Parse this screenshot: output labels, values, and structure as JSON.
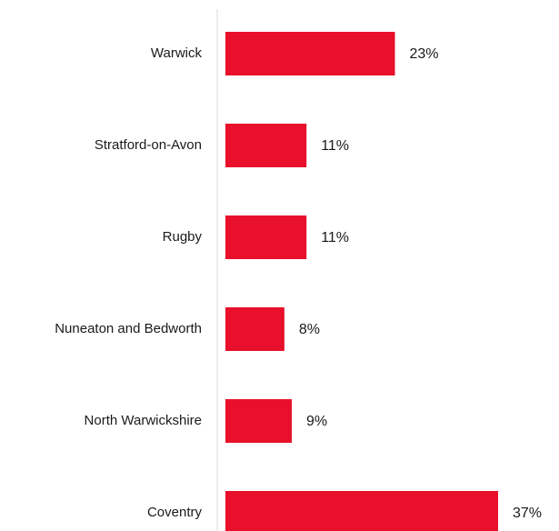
{
  "chart_data": {
    "type": "bar",
    "orientation": "horizontal",
    "categories": [
      "Warwick",
      "Stratford-on-Avon",
      "Rugby",
      "Nuneaton and Bedworth",
      "North Warwickshire",
      "Coventry"
    ],
    "values": [
      23,
      11,
      11,
      8,
      9,
      37
    ],
    "value_labels": [
      "23%",
      "11%",
      "11%",
      "8%",
      "9%",
      "37%"
    ],
    "unit": "%",
    "title": "",
    "xlabel": "",
    "ylabel": "",
    "xlim": [
      0,
      37
    ],
    "grid": false,
    "legend": "none",
    "bar_color": "#e8102a",
    "axis_color": "#d9d9d9"
  }
}
